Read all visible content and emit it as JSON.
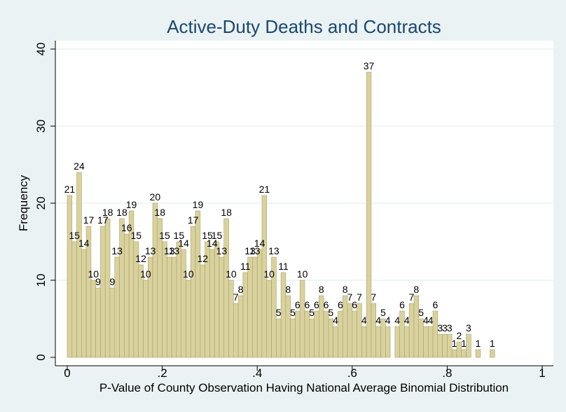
{
  "chart_data": {
    "type": "bar",
    "title": "Active-Duty Deaths and Contracts",
    "xlabel": "P-Value of County Observation Having National Average Binomial Distribution",
    "ylabel": "Frequency",
    "xlim": [
      0,
      1
    ],
    "ylim": [
      0,
      40
    ],
    "x_ticks": [
      0,
      0.2,
      0.4,
      0.6,
      0.8,
      1
    ],
    "x_tick_labels": [
      "0",
      ".2",
      ".4",
      ".6",
      ".8",
      "1"
    ],
    "y_ticks": [
      0,
      10,
      20,
      30,
      40
    ],
    "y_tick_labels": [
      "0",
      "10",
      "20",
      "30",
      "40"
    ],
    "bin_width": 0.01,
    "grid": true,
    "colors": {
      "background": "#eaf2f3",
      "plot_background": "#ffffff",
      "bar_fill": "#d9d29f",
      "bar_stroke": "#a8a060",
      "grid": "#eaf2f3",
      "title": "#1a476f"
    },
    "bins": [
      0,
      0.01,
      0.02,
      0.03,
      0.04,
      0.05,
      0.06,
      0.07,
      0.08,
      0.09,
      0.1,
      0.11,
      0.12,
      0.13,
      0.14,
      0.15,
      0.16,
      0.17,
      0.18,
      0.19,
      0.2,
      0.21,
      0.22,
      0.23,
      0.24,
      0.25,
      0.26,
      0.27,
      0.28,
      0.29,
      0.3,
      0.31,
      0.32,
      0.33,
      0.34,
      0.35,
      0.36,
      0.37,
      0.38,
      0.39,
      0.4,
      0.41,
      0.42,
      0.43,
      0.44,
      0.45,
      0.46,
      0.47,
      0.48,
      0.49,
      0.5,
      0.51,
      0.52,
      0.53,
      0.54,
      0.55,
      0.56,
      0.57,
      0.58,
      0.59,
      0.6,
      0.61,
      0.62,
      0.63,
      0.64,
      0.65,
      0.66,
      0.67,
      0.68,
      0.69,
      0.7,
      0.71,
      0.72,
      0.73,
      0.74,
      0.75,
      0.76,
      0.77,
      0.78,
      0.79,
      0.8,
      0.81,
      0.82,
      0.83,
      0.84,
      0.85,
      0.86,
      0.87,
      0.88,
      0.89
    ],
    "values": [
      21,
      15,
      24,
      14,
      17,
      10,
      9,
      17,
      18,
      9,
      13,
      18,
      16,
      19,
      15,
      12,
      10,
      13,
      20,
      18,
      15,
      13,
      13,
      15,
      14,
      10,
      17,
      19,
      12,
      15,
      14,
      15,
      13,
      18,
      10,
      7,
      8,
      11,
      13,
      13,
      14,
      21,
      10,
      13,
      5,
      11,
      8,
      5,
      6,
      10,
      6,
      5,
      6,
      8,
      6,
      5,
      4,
      6,
      8,
      7,
      6,
      7,
      4,
      37,
      7,
      4,
      5,
      4,
      0,
      4,
      6,
      4,
      7,
      8,
      5,
      4,
      4,
      6,
      3,
      3,
      3,
      1,
      2,
      1,
      3,
      0,
      1,
      0,
      0,
      1
    ]
  }
}
